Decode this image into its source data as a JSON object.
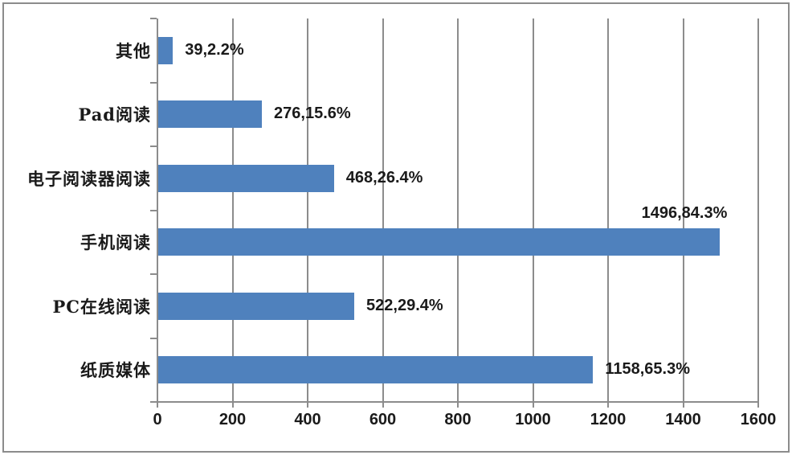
{
  "chart_data": {
    "type": "bar",
    "orientation": "horizontal",
    "title": "",
    "categories": [
      "其他",
      "Pad阅读",
      "电子阅读器阅读",
      "手机阅读",
      "PC在线阅读",
      "纸质媒体"
    ],
    "values": [
      39,
      276,
      468,
      1496,
      522,
      1158
    ],
    "percentages": [
      2.2,
      15.6,
      26.4,
      84.3,
      29.4,
      65.3
    ],
    "labels": [
      "39,2.2%",
      "276,15.6%",
      "468,26.4%",
      "1496,84.3%",
      "522,29.4%",
      "1158,65.3%"
    ],
    "label_positions": [
      "right",
      "right",
      "right",
      "above",
      "right",
      "right"
    ],
    "xlim": [
      0,
      1600
    ],
    "x_ticks": [
      0,
      200,
      400,
      600,
      800,
      1000,
      1200,
      1400,
      1600
    ],
    "x_tick_labels": [
      "0",
      "200",
      "400",
      "600",
      "800",
      "1000",
      "1200",
      "1400",
      "1600"
    ],
    "grid": true,
    "legend": "none",
    "colors": {
      "bar": "#4F81BD",
      "grid": "#8C8C8C",
      "axis": "#8C8C8C",
      "frame_border": "#8C8C8C",
      "text": "#1A1A1A",
      "background": "#FFFFFF"
    }
  }
}
